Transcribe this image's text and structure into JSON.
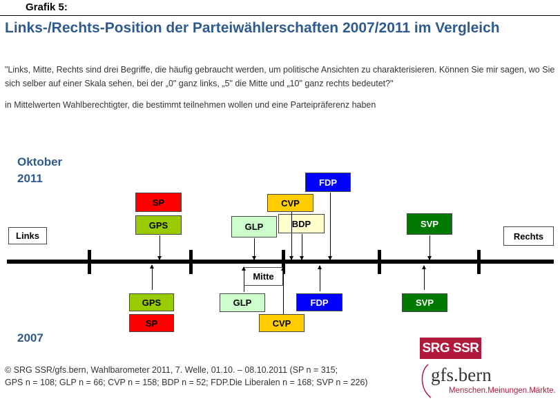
{
  "header": {
    "grafik": "Grafik 5:",
    "title": "Links-/Rechts-Position der Parteiwählerschaften 2007/2011 im Vergleich",
    "question": "\"Links, Mitte, Rechts sind drei Begriffe, die häufig gebraucht werden, um politische Ansichten zu charakterisieren. Können Sie mir sagen, wo Sie sich selber auf einer Skala sehen, bei der „0\" ganz links, „5\" die Mitte und „10\" ganz rechts bedeutet?\"",
    "basis": "in Mittelwerten Wahlberechtigter, die bestimmt teilnehmen wollen und eine Parteipräferenz haben"
  },
  "chart_data": {
    "type": "scale-diagram",
    "scale": [
      0,
      10
    ],
    "scale_labels": {
      "left": "Links",
      "center": "Mitte",
      "right": "Rechts"
    },
    "periods": [
      "Oktober 2011",
      "2007"
    ],
    "label_2011": "Oktober\n2011",
    "label_2007": "2007",
    "series_2011": [
      {
        "party": "SP",
        "color": "#ff0000",
        "text_color": "#000000"
      },
      {
        "party": "GPS",
        "color": "#99cc00",
        "text_color": "#000000"
      },
      {
        "party": "GLP",
        "color": "#ccffcc",
        "text_color": "#000000"
      },
      {
        "party": "CVP",
        "color": "#ffcc00",
        "text_color": "#000000"
      },
      {
        "party": "BDP",
        "color": "#ffffcc",
        "text_color": "#000000"
      },
      {
        "party": "FDP",
        "color": "#0000ff",
        "text_color": "#ffffff"
      },
      {
        "party": "SVP",
        "color": "#007a00",
        "text_color": "#ffffff"
      }
    ],
    "series_2007": [
      {
        "party": "GPS",
        "color": "#99cc00",
        "text_color": "#000000"
      },
      {
        "party": "SP",
        "color": "#ff0000",
        "text_color": "#000000"
      },
      {
        "party": "GLP",
        "color": "#ccffcc",
        "text_color": "#000000"
      },
      {
        "party": "CVP",
        "color": "#ffcc00",
        "text_color": "#000000"
      },
      {
        "party": "FDP",
        "color": "#0000ff",
        "text_color": "#ffffff"
      },
      {
        "party": "SVP",
        "color": "#007a00",
        "text_color": "#ffffff"
      }
    ]
  },
  "footer": {
    "line1": "© SRG SSR/gfs.bern, Wahlbarometer 2011, 7. Welle, 01.10. – 08.10.2011 (SP n = 315;",
    "line2": "GPS n = 108; GLP n = 66; CVP n = 158; BDP n = 52; FDP.Die Liberalen n = 168; SVP n = 226)"
  },
  "logos": {
    "srg": "SRG SSR",
    "gfs": "gfs.bern",
    "gfs_tagline": "Menschen.Meinungen.Märkte."
  }
}
